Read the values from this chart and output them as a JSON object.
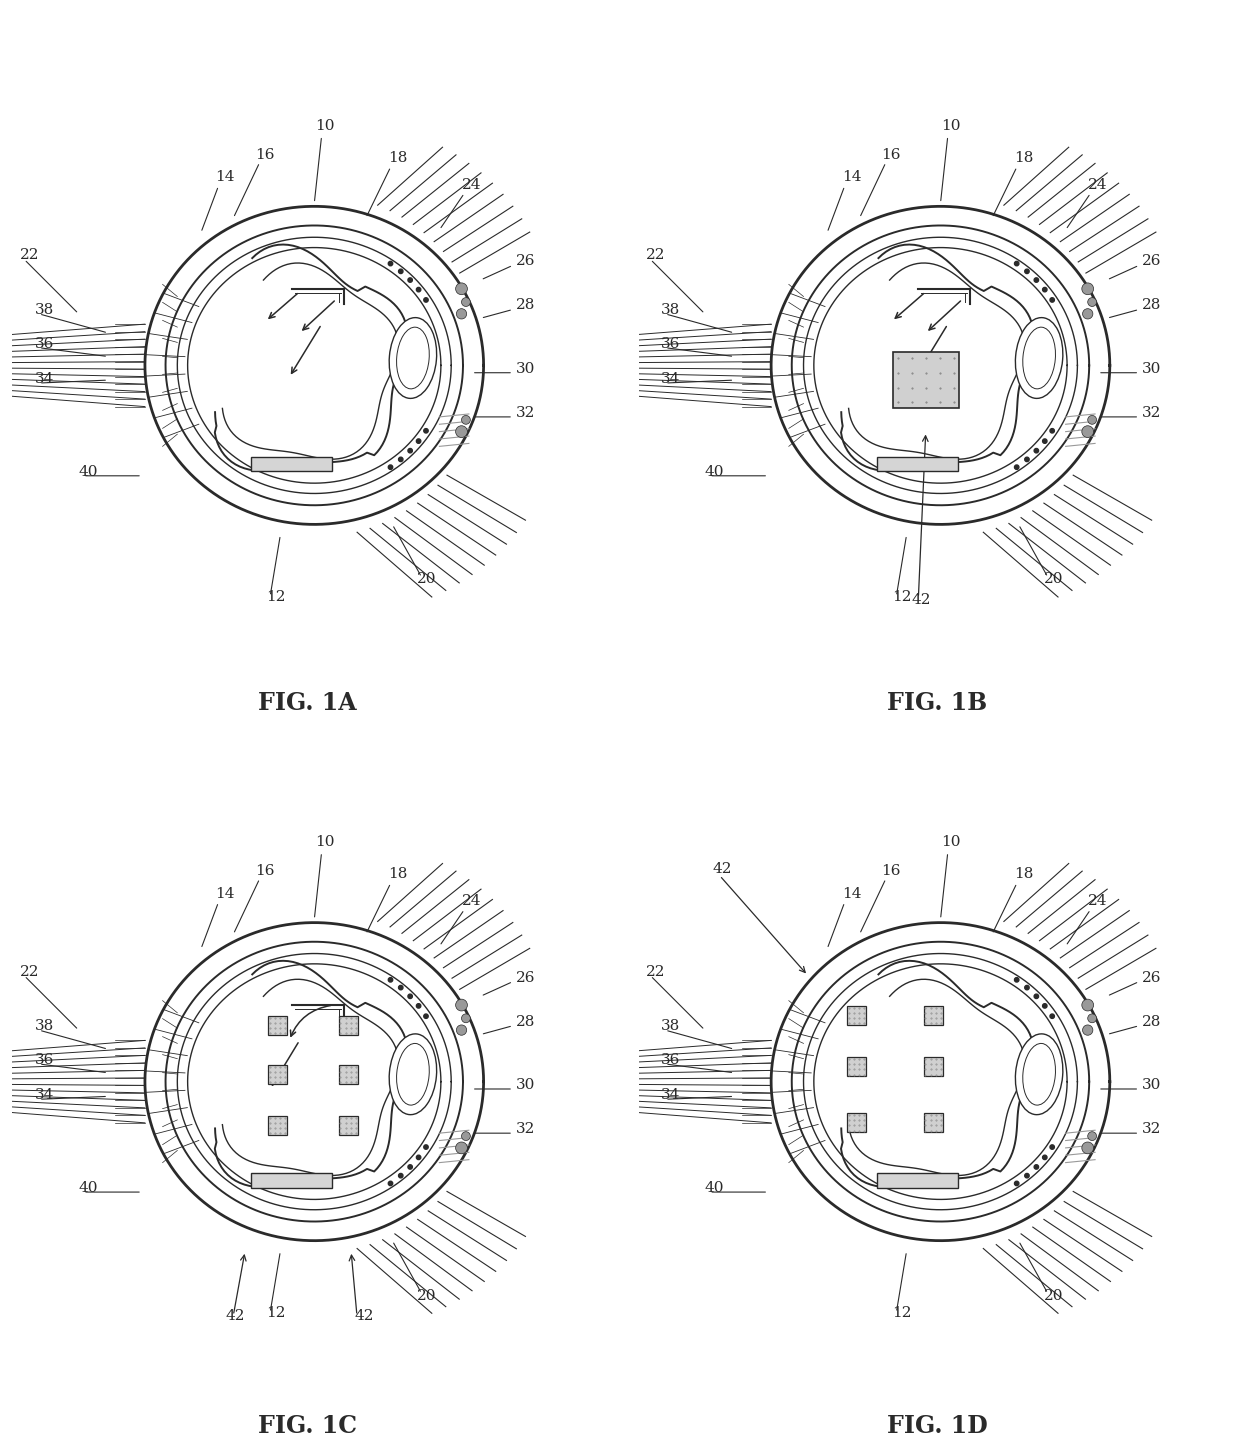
{
  "bg_color": "#ffffff",
  "lc": "#2a2a2a",
  "gray_fill": "#c8c8c8",
  "dark_fill": "#888888",
  "fig_labels": [
    "FIG. 1A",
    "FIG. 1B",
    "FIG. 1C",
    "FIG. 1D"
  ],
  "fig_label_fontsize": 17,
  "ref_fontsize": 11,
  "lw_outer": 2.0,
  "lw_mid": 1.4,
  "lw_thin": 1.0,
  "lw_hair": 0.7
}
